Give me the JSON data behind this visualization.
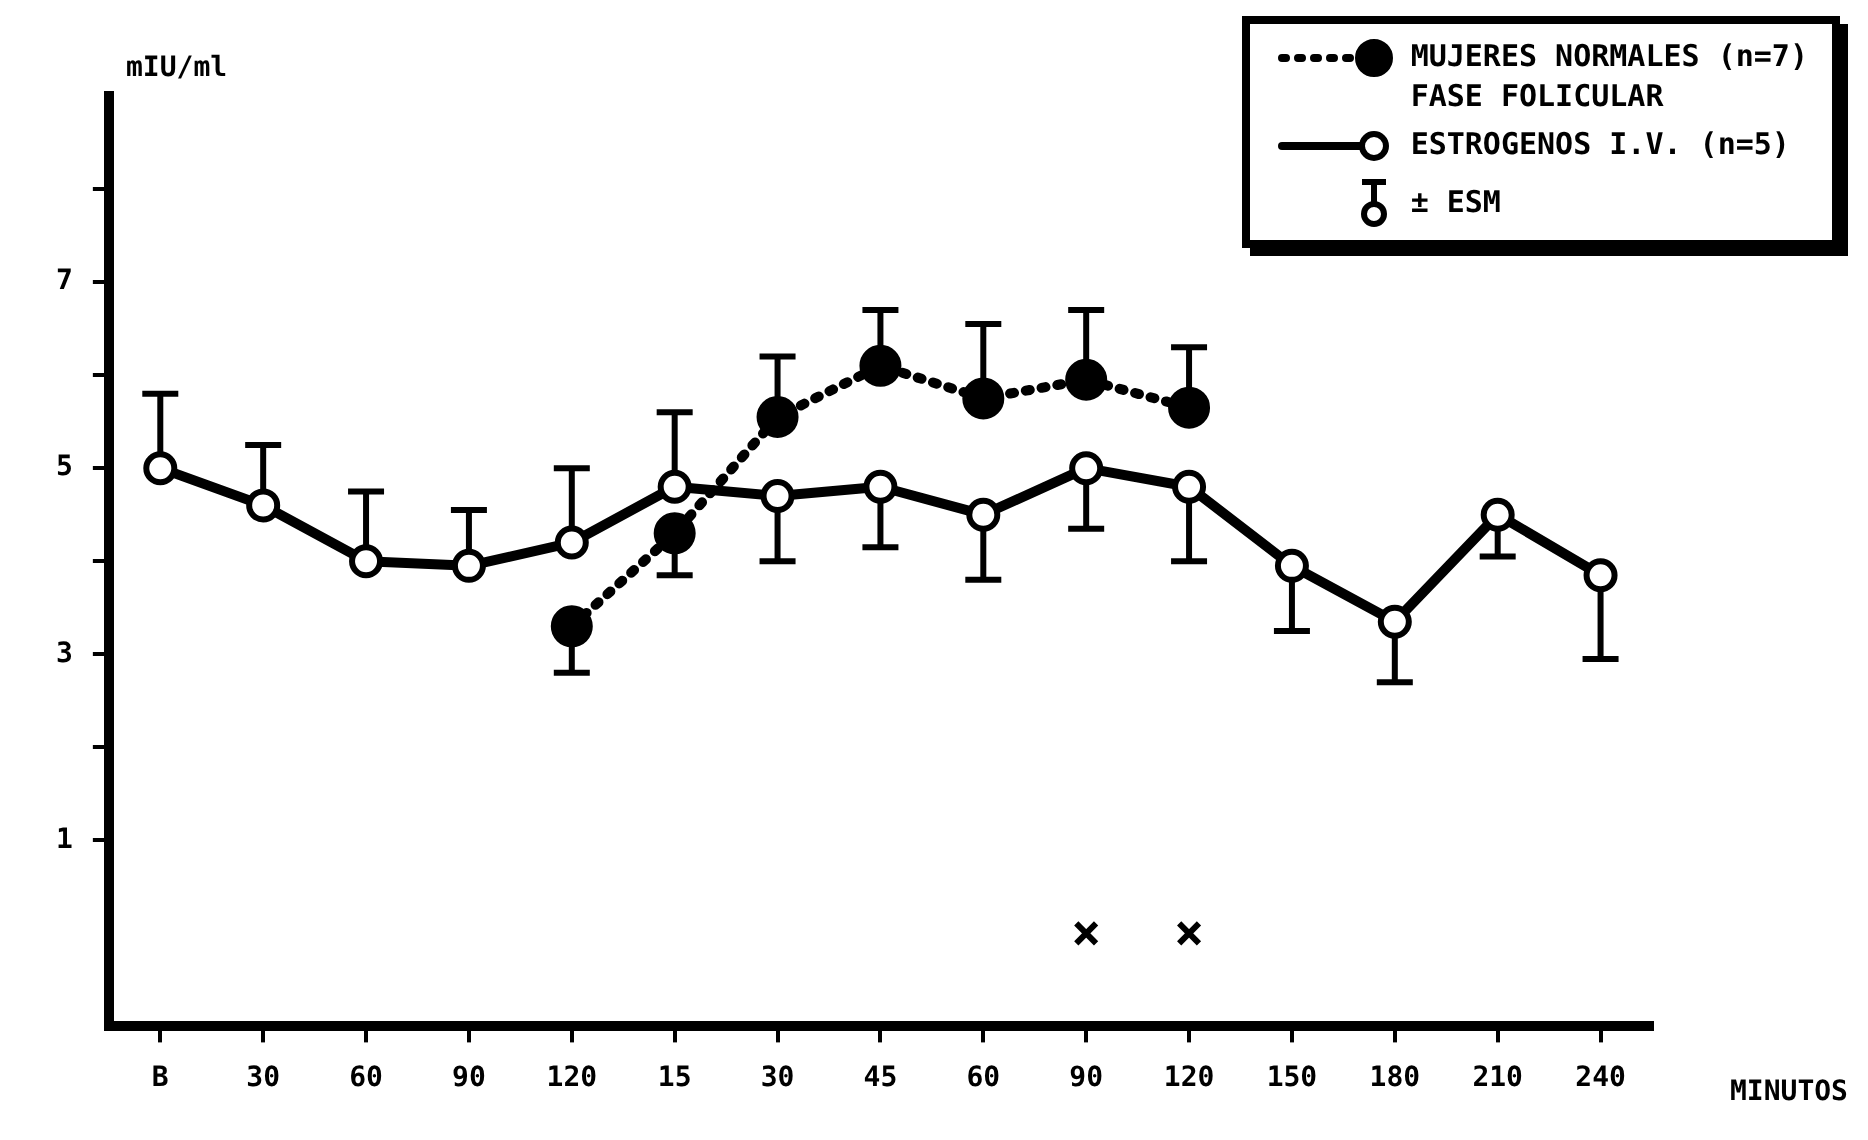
{
  "chart_data": {
    "type": "line",
    "ylabel": "mIU/ml",
    "xlabel": "MINUTOS",
    "categories": [
      "B",
      "30",
      "60",
      "90",
      "120",
      "15",
      "30",
      "45",
      "60",
      "90",
      "120",
      "150",
      "180",
      "210",
      "240"
    ],
    "series": [
      {
        "name": "MUJERES NORMALES (n=7)\nFASE FOLICULAR",
        "color": "#000000",
        "line_style": "dotted",
        "marker": "circle",
        "values": [
          null,
          null,
          null,
          null,
          3.3,
          4.3,
          5.55,
          6.1,
          5.75,
          5.95,
          5.65,
          null,
          null,
          null,
          null
        ],
        "errors": [
          null,
          null,
          null,
          null,
          [
            2.8,
            3.3
          ],
          [
            3.85,
            4.3
          ],
          [
            5.55,
            6.2
          ],
          [
            6.1,
            6.7
          ],
          [
            5.75,
            6.55
          ],
          [
            5.95,
            6.7
          ],
          [
            5.65,
            6.3
          ],
          null,
          null,
          null,
          null
        ]
      },
      {
        "name": "ESTROGENOS I.V. (n=5)",
        "color": "#000000",
        "line_style": "solid",
        "marker": "circle",
        "values": [
          5.0,
          4.6,
          4.0,
          3.95,
          4.2,
          4.8,
          4.7,
          4.8,
          4.5,
          5.0,
          4.8,
          3.95,
          3.35,
          4.5,
          3.85
        ],
        "errors": [
          [
            5.0,
            5.8
          ],
          [
            4.6,
            5.25
          ],
          [
            4.0,
            4.75
          ],
          [
            3.95,
            4.55
          ],
          [
            4.2,
            5.0
          ],
          [
            4.8,
            5.6
          ],
          [
            4.0,
            4.7
          ],
          [
            4.15,
            4.8
          ],
          [
            3.8,
            4.5
          ],
          [
            4.35,
            5.0
          ],
          [
            4.0,
            4.8
          ],
          [
            3.25,
            3.95
          ],
          [
            2.7,
            3.35
          ],
          [
            4.05,
            4.5
          ],
          [
            2.95,
            3.85
          ]
        ]
      },
      {
        "type": "scatter",
        "color": "#000000",
        "marker": "cross",
        "values": [
          null,
          null,
          null,
          null,
          null,
          null,
          null,
          null,
          null,
          0,
          0,
          null,
          null,
          null,
          null
        ]
      }
    ],
    "ylim": [
      -1,
      9
    ],
    "yticks": [
      1,
      {
        "value": 2,
        "label": null
      },
      3,
      {
        "value": 4,
        "label": null
      },
      5,
      {
        "value": 6,
        "label": null
      },
      7,
      {
        "value": 8,
        "label": null
      }
    ],
    "grid": false,
    "legend": "top right",
    "annotations": [
      "± ESM"
    ]
  }
}
